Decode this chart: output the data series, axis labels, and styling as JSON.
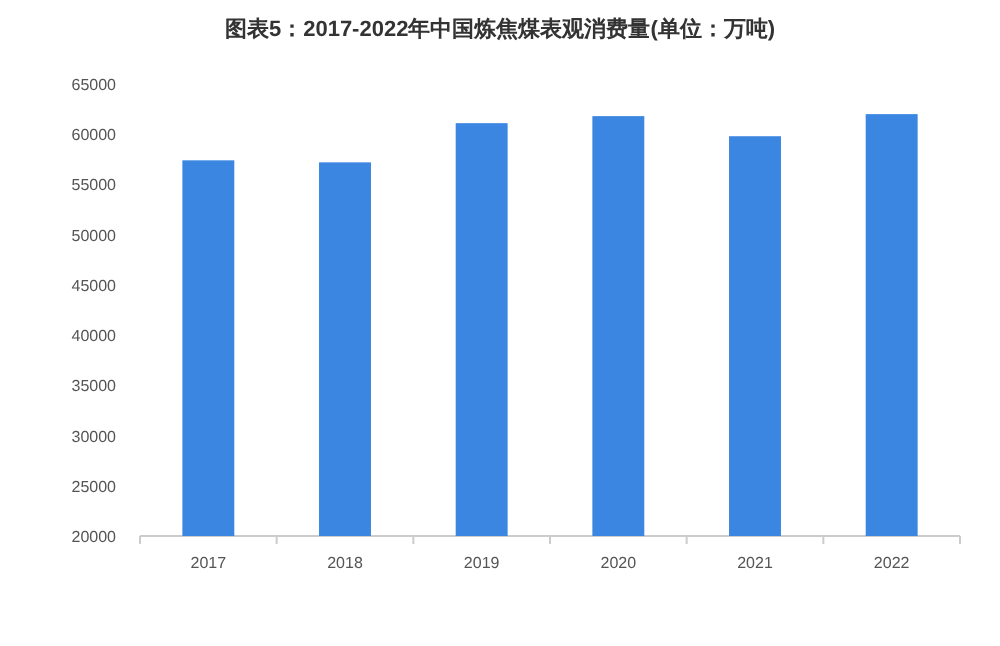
{
  "chart_data": {
    "type": "bar",
    "title": "图表5：2017-2022年中国炼焦煤表观消费量(单位：万吨)",
    "categories": [
      "2017",
      "2018",
      "2019",
      "2020",
      "2021",
      "2022"
    ],
    "values": [
      57400,
      57200,
      61100,
      61800,
      59800,
      62000
    ],
    "color": "#3a86e0",
    "ylim": [
      20000,
      65000
    ],
    "yticks": [
      20000,
      25000,
      30000,
      35000,
      40000,
      45000,
      50000,
      55000,
      60000,
      65000
    ],
    "grid": false
  }
}
